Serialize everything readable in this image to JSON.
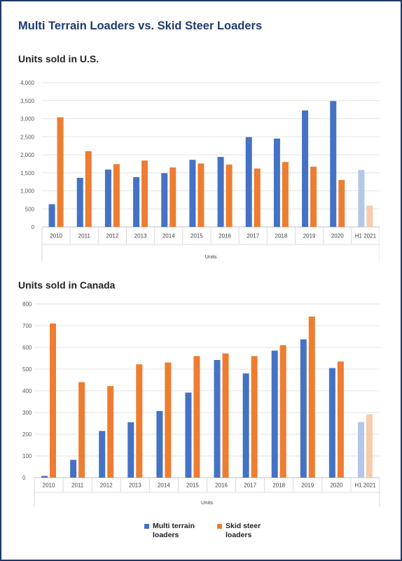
{
  "title": "Multi Terrain Loaders vs. Skid Steer Loaders",
  "legend": {
    "mtl": "Multi terrain loaders",
    "ssl": "Skid steer loaders"
  },
  "colors": {
    "mtl": "#4472c4",
    "ssl": "#ed7d31",
    "mtl_light": "#b4c7e7",
    "ssl_light": "#f8cbad"
  },
  "chart_data": [
    {
      "type": "bar",
      "title": "Units sold in U.S.",
      "xlabel": "Units",
      "ylabel": "",
      "ylim": [
        0,
        4000
      ],
      "yticks": [
        "0",
        "500",
        "1,000",
        "1,500",
        "2,000",
        "2,500",
        "3,000",
        "3,500",
        "4,000"
      ],
      "grid": true,
      "categories": [
        "2010",
        "2011",
        "2012",
        "2013",
        "2014",
        "2015",
        "2016",
        "2017",
        "2018",
        "2019",
        "2020",
        "H1 2021"
      ],
      "series": [
        {
          "name": "Multi terrain loaders",
          "values": [
            630,
            1360,
            1590,
            1380,
            1490,
            1860,
            1940,
            2490,
            2450,
            3230,
            3490,
            1580
          ]
        },
        {
          "name": "Skid steer loaders",
          "values": [
            3040,
            2100,
            1740,
            1840,
            1650,
            1760,
            1730,
            1620,
            1800,
            1670,
            1300,
            590
          ]
        }
      ],
      "faded_categories": [
        "H1 2021"
      ]
    },
    {
      "type": "bar",
      "title": "Units sold in Canada",
      "xlabel": "Units",
      "ylabel": "",
      "ylim": [
        0,
        800
      ],
      "yticks": [
        "0",
        "100",
        "200",
        "300",
        "400",
        "500",
        "600",
        "700",
        "800"
      ],
      "grid": true,
      "categories": [
        "2010",
        "2011",
        "2012",
        "2013",
        "2014",
        "2015",
        "2016",
        "2017",
        "2018",
        "2019",
        "2020",
        "H1 2021"
      ],
      "series": [
        {
          "name": "Multi terrain loaders",
          "values": [
            8,
            82,
            215,
            255,
            307,
            392,
            542,
            480,
            585,
            637,
            505,
            256
          ]
        },
        {
          "name": "Skid steer loaders",
          "values": [
            710,
            440,
            422,
            522,
            530,
            560,
            572,
            560,
            610,
            742,
            535,
            292
          ]
        }
      ],
      "faded_categories": [
        "H1 2021"
      ]
    }
  ]
}
